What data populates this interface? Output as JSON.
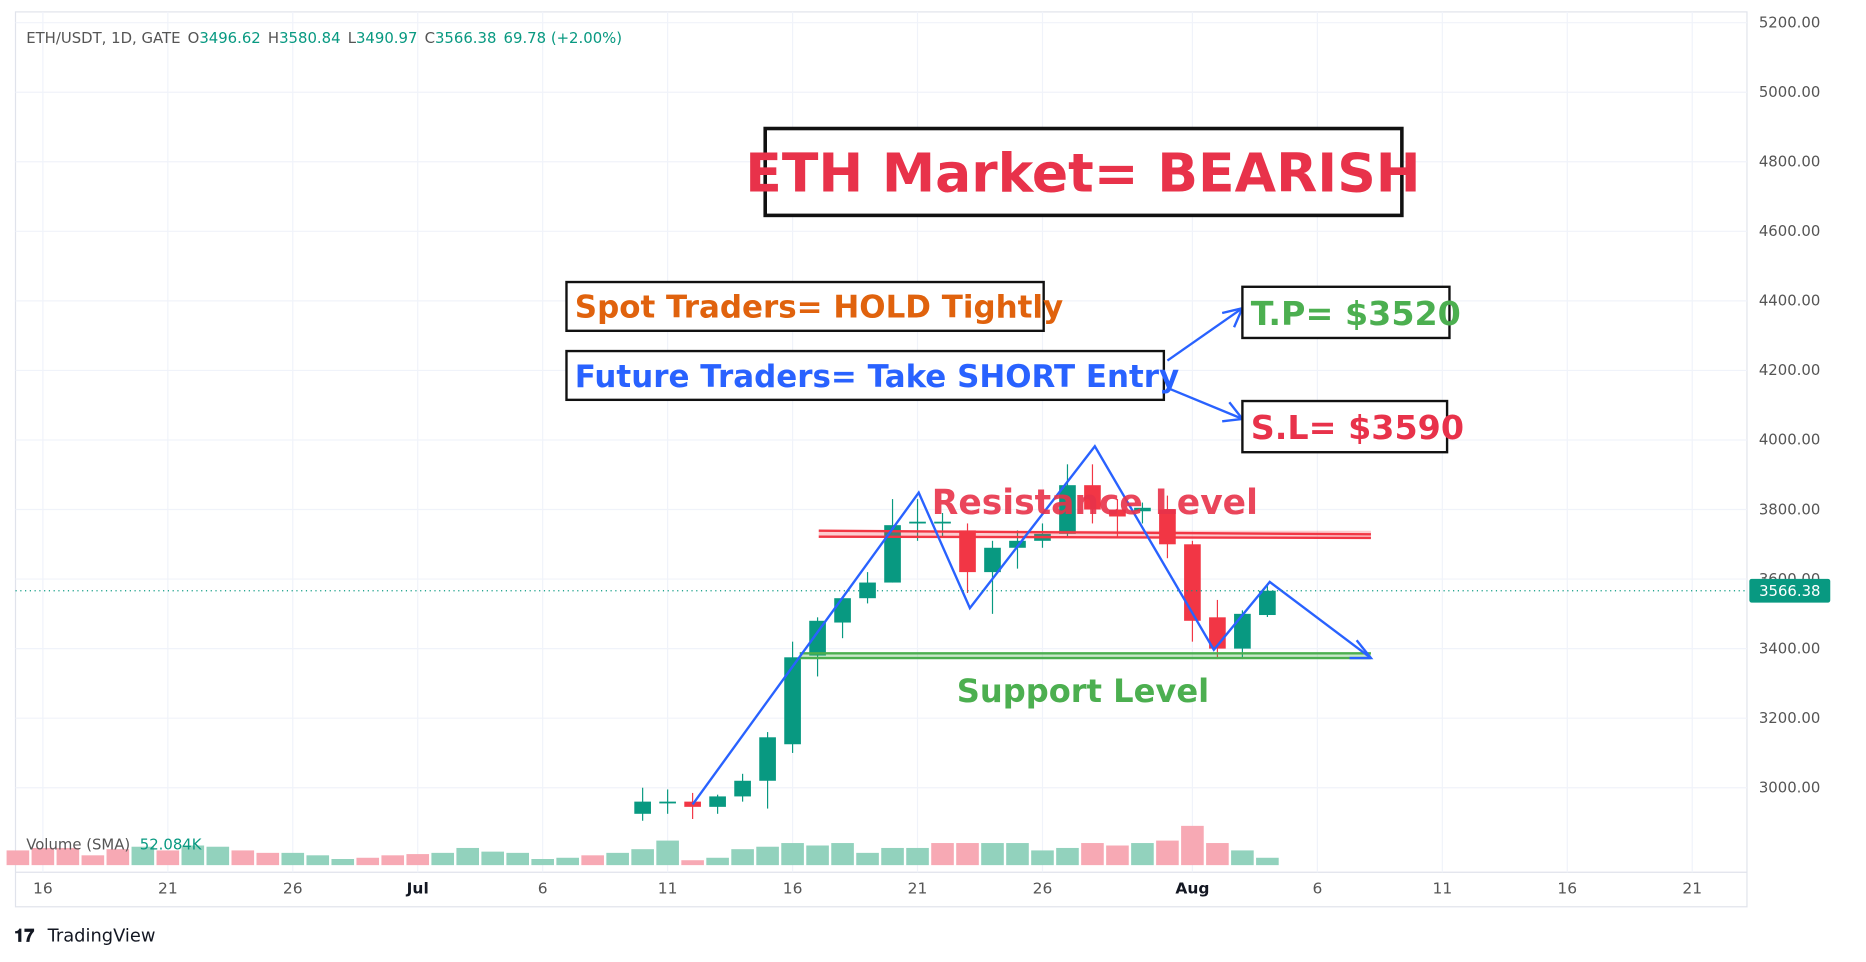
{
  "chart_data": {
    "type": "candlestick",
    "symbol": "ETH/USDT, 1D, GATE",
    "ohlc_labels": [
      "O",
      "H",
      "L",
      "C"
    ],
    "change": "69.78 (+2.00%)",
    "x": [
      "Jul 10",
      "Jul 11",
      "Jul 12",
      "Jul 13",
      "Jul 14",
      "Jul 15",
      "Jul 16",
      "Jul 17",
      "Jul 18",
      "Jul 19",
      "Jul 20",
      "Jul 21",
      "Jul 22",
      "Jul 23",
      "Jul 24",
      "Jul 25",
      "Jul 26",
      "Jul 27",
      "Jul 28",
      "Jul 29",
      "Jul 30",
      "Jul 31",
      "Aug 1",
      "Aug 2",
      "Aug 3",
      "Aug 4"
    ],
    "open": [
      2925,
      2955,
      2960,
      2945,
      2975,
      3020,
      3125,
      3380,
      3475,
      3545,
      3590,
      3760,
      3760,
      3740,
      3620,
      3690,
      3710,
      3730,
      3870,
      3800,
      3795,
      3800,
      3700,
      3490,
      3400,
      3496.62
    ],
    "high": [
      3000,
      2995,
      2985,
      2980,
      3040,
      3160,
      3420,
      3490,
      3540,
      3620,
      3830,
      3830,
      3790,
      3760,
      3710,
      3740,
      3760,
      3930,
      3930,
      3830,
      3820,
      3840,
      3710,
      3540,
      3510,
      3580.84
    ],
    "low": [
      2905,
      2925,
      2910,
      2925,
      2960,
      2940,
      3100,
      3320,
      3430,
      3530,
      3590,
      3710,
      3720,
      3560,
      3500,
      3630,
      3690,
      3720,
      3760,
      3720,
      3760,
      3660,
      3420,
      3370,
      3370,
      3490.97
    ],
    "close": [
      2960,
      2960,
      2945,
      2975,
      3020,
      3145,
      3375,
      3480,
      3545,
      3590,
      3755,
      3765,
      3765,
      3620,
      3690,
      3710,
      3730,
      3870,
      3800,
      3780,
      3805,
      3700,
      3480,
      3400,
      3500,
      3566.38
    ],
    "up_color": "#089981",
    "down_color": "#f23645",
    "ylim": [
      2750,
      5231
    ],
    "yticks": [
      {
        "value": 3000,
        "label": "3000.00"
      },
      {
        "value": 3200,
        "label": "3200.00"
      },
      {
        "value": 3400,
        "label": "3400.00"
      },
      {
        "value": 3600,
        "label": "3600.00"
      },
      {
        "value": 3800,
        "label": "3800.00"
      },
      {
        "value": 4000,
        "label": "4000.00"
      },
      {
        "value": 4200,
        "label": "4200.00"
      },
      {
        "value": 4400,
        "label": "4400.00"
      },
      {
        "value": 4600,
        "label": "4600.00"
      },
      {
        "value": 4800,
        "label": "4800.00"
      },
      {
        "value": 5000,
        "label": "5000.00"
      },
      {
        "value": 5200,
        "label": "5200.00"
      }
    ],
    "xticks": [
      {
        "value": "Jun 16",
        "label": "16"
      },
      {
        "value": "Jun 21",
        "label": "21"
      },
      {
        "value": "Jun 26",
        "label": "26"
      },
      {
        "value": "Jul 1",
        "label": "Jul"
      },
      {
        "value": "Jul 6",
        "label": "6"
      },
      {
        "value": "Jul 11",
        "label": "11"
      },
      {
        "value": "Jul 16",
        "label": "16"
      },
      {
        "value": "Jul 21",
        "label": "21"
      },
      {
        "value": "Jul 26",
        "label": "26"
      },
      {
        "value": "Aug 1",
        "label": "Aug"
      },
      {
        "value": "Aug 6",
        "label": "6"
      },
      {
        "value": "Aug 11",
        "label": "11"
      },
      {
        "value": "Aug 16",
        "label": "16"
      },
      {
        "value": "Aug 21",
        "label": "21"
      }
    ],
    "grid": true,
    "volume": {
      "name": "Volume (SMA)",
      "sma_label": "52.084K",
      "x": [
        "Jun 15",
        "Jun 16",
        "Jun 17",
        "Jun 18",
        "Jun 19",
        "Jun 20",
        "Jun 21",
        "Jun 22",
        "Jun 23",
        "Jun 24",
        "Jun 25",
        "Jun 26",
        "Jun 27",
        "Jun 28",
        "Jun 29",
        "Jun 30",
        "Jul 1",
        "Jul 2",
        "Jul 3",
        "Jul 4",
        "Jul 5",
        "Jul 6",
        "Jul 7",
        "Jul 8",
        "Jul 9",
        "Jul 10",
        "Jul 11",
        "Jul 12",
        "Jul 13",
        "Jul 14",
        "Jul 15",
        "Jul 16",
        "Jul 17",
        "Jul 18",
        "Jul 19",
        "Jul 20",
        "Jul 21",
        "Jul 22",
        "Jul 23",
        "Jul 24",
        "Jul 25",
        "Jul 26",
        "Jul 27",
        "Jul 28",
        "Jul 29",
        "Jul 30",
        "Jul 31",
        "Aug 1",
        "Aug 2",
        "Aug 3",
        "Aug 4"
      ],
      "values": [
        48,
        56,
        56,
        32,
        52,
        60,
        48,
        64,
        60,
        48,
        40,
        40,
        32,
        20,
        24,
        32,
        36,
        40,
        56,
        44,
        40,
        20,
        24,
        32,
        40,
        52,
        80,
        16,
        24,
        52,
        60,
        72,
        64,
        72,
        40,
        56,
        56,
        72,
        72,
        72,
        72,
        48,
        56,
        72,
        64,
        72,
        80,
        128,
        72,
        48,
        24
      ],
      "colors": [
        "#f7a9b4",
        "#f7a9b4",
        "#f7a9b4",
        "#f7a9b4",
        "#f7a9b4",
        "#92d2bd",
        "#f7a9b4",
        "#92d2bd",
        "#92d2bd",
        "#f7a9b4",
        "#f7a9b4",
        "#92d2bd",
        "#92d2bd",
        "#92d2bd",
        "#f7a9b4",
        "#f7a9b4",
        "#f7a9b4",
        "#92d2bd",
        "#92d2bd",
        "#92d2bd",
        "#92d2bd",
        "#92d2bd",
        "#92d2bd",
        "#f7a9b4",
        "#92d2bd",
        "#92d2bd",
        "#92d2bd",
        "#f7a9b4",
        "#92d2bd",
        "#92d2bd",
        "#92d2bd",
        "#92d2bd",
        "#92d2bd",
        "#92d2bd",
        "#92d2bd",
        "#92d2bd",
        "#92d2bd",
        "#f7a9b4",
        "#f7a9b4",
        "#92d2bd",
        "#92d2bd",
        "#92d2bd",
        "#92d2bd",
        "#f7a9b4",
        "#f7a9b4",
        "#92d2bd",
        "#f7a9b4",
        "#f7a9b4",
        "#f7a9b4",
        "#92d2bd",
        "#92d2bd"
      ]
    },
    "annotations": {
      "headline": "ETH Market= BEARISH",
      "spot": "Spot Traders= HOLD Tightly",
      "future": "Future Traders= Take SHORT Entry",
      "take_profit": "T.P= $3520",
      "stop_loss": "S.L= $3590",
      "resistance": "Resistance Level",
      "support": "Support Level"
    },
    "brand": "TradingView"
  }
}
